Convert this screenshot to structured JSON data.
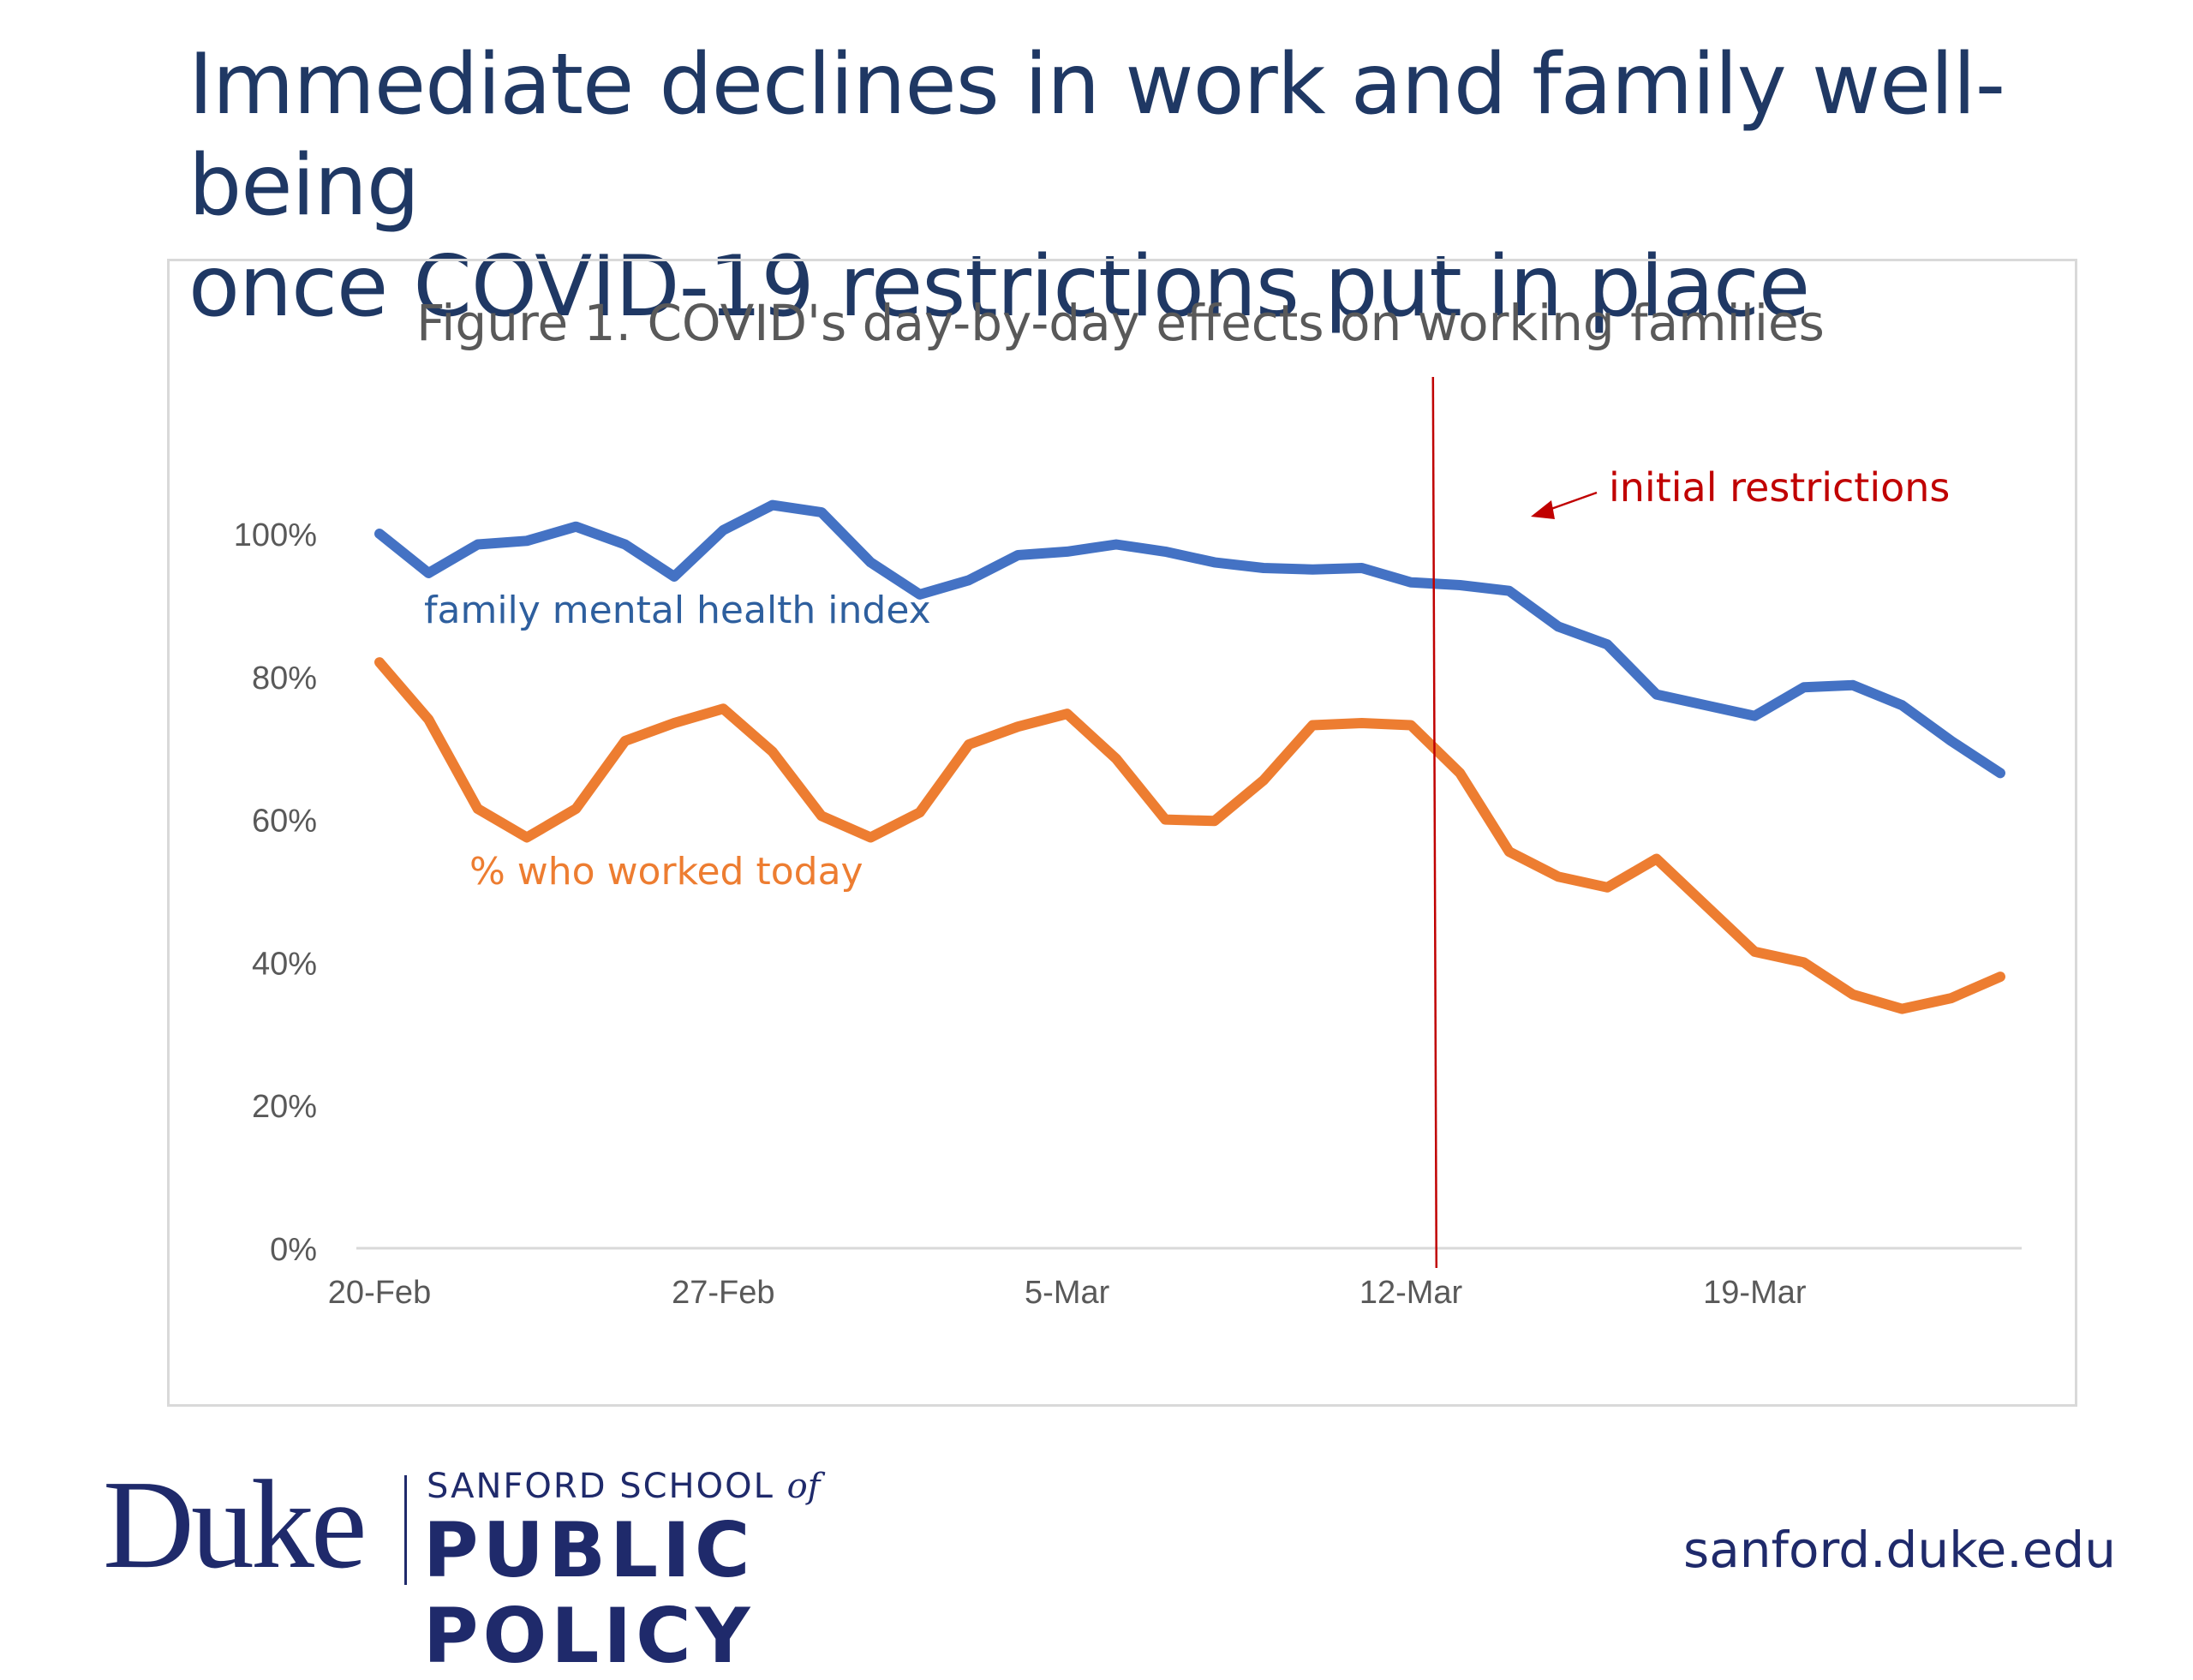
{
  "slide": {
    "title_line1": "Immediate declines in work and family well-being",
    "title_line2": "once COVID-19 restrictions put in place"
  },
  "chart_data": {
    "type": "line",
    "title": "Figure 1. COVID's day-by-day effects on working families",
    "xlabel": "",
    "ylabel": "",
    "x": [
      "20-Feb",
      "21-Feb",
      "22-Feb",
      "23-Feb",
      "24-Feb",
      "25-Feb",
      "26-Feb",
      "27-Feb",
      "28-Feb",
      "29-Feb",
      "1-Mar",
      "2-Mar",
      "3-Mar",
      "4-Mar",
      "5-Mar",
      "6-Mar",
      "7-Mar",
      "8-Mar",
      "9-Mar",
      "10-Mar",
      "11-Mar",
      "12-Mar",
      "13-Mar",
      "14-Mar",
      "15-Mar",
      "16-Mar",
      "17-Mar",
      "18-Mar",
      "19-Mar",
      "20-Mar",
      "21-Mar",
      "22-Mar",
      "23-Mar",
      "24-Mar"
    ],
    "x_ticks": [
      "20-Feb",
      "27-Feb",
      "5-Mar",
      "12-Mar",
      "19-Mar"
    ],
    "y_ticks": [
      0,
      20,
      40,
      60,
      80,
      100
    ],
    "y_tick_labels": [
      "0%",
      "20%",
      "40%",
      "60%",
      "80%",
      "100%"
    ],
    "ylim": [
      0,
      100
    ],
    "grid": false,
    "series": [
      {
        "name": "family mental health index",
        "color": "#4472c4",
        "values": [
          100,
          94.5,
          98.5,
          99,
          101,
          98.5,
          94,
          100.5,
          104,
          103,
          96,
          91.5,
          93.5,
          97,
          97.5,
          98.5,
          97.5,
          96,
          95.2,
          95,
          95.2,
          93.2,
          92.8,
          92,
          87,
          84.5,
          77.5,
          76,
          74.5,
          78.5,
          78.8,
          76,
          71,
          66.5
        ]
      },
      {
        "name": "% who worked today",
        "color": "#ed7d31",
        "values": [
          82,
          74,
          61.5,
          57.5,
          61.5,
          71,
          73.5,
          75.5,
          69.5,
          60.5,
          57.5,
          61,
          70.5,
          73,
          74.8,
          68.5,
          60,
          59.8,
          65.5,
          73.2,
          73.5,
          73.2,
          66.5,
          55.5,
          52,
          50.5,
          54.5,
          48,
          41.5,
          40,
          35.5,
          33.5,
          35,
          38
        ]
      }
    ],
    "annotation": {
      "text": "initial restrictions",
      "x": "13-Mar",
      "color": "#c00000"
    }
  },
  "footer": {
    "duke": "Duke",
    "school": "SANFORD SCHOOL",
    "school_of": "of",
    "policy": "PUBLIC POLICY",
    "url": "sanford.duke.edu"
  }
}
